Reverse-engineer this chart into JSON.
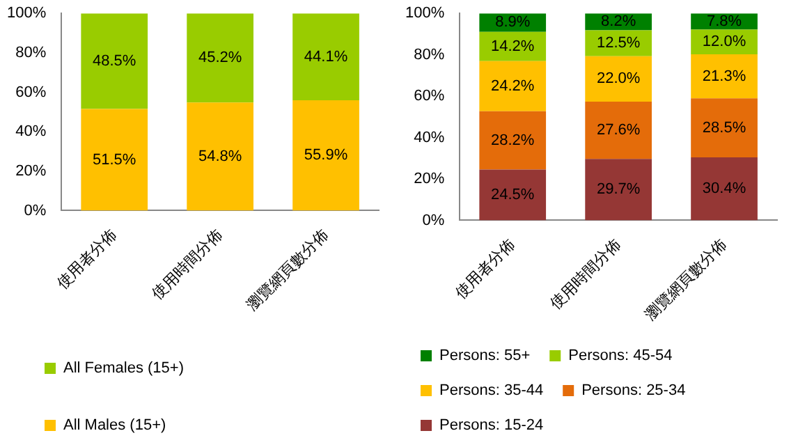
{
  "chart_data": [
    {
      "type": "bar",
      "stacked": true,
      "categories": [
        "使用者分佈",
        "使用時間分佈",
        "瀏覽網頁數分佈"
      ],
      "ylim": [
        0,
        100
      ],
      "yticks": [
        {
          "value": 0,
          "label": "0%"
        },
        {
          "value": 20,
          "label": "20%"
        },
        {
          "value": 40,
          "label": "40%"
        },
        {
          "value": 60,
          "label": "60%"
        },
        {
          "value": 80,
          "label": "80%"
        },
        {
          "value": 100,
          "label": "100%"
        }
      ],
      "grid": false,
      "legend": "bottom",
      "series": [
        {
          "name": "All Males (15+)",
          "color": "#ffc000",
          "values": [
            51.5,
            54.8,
            55.9
          ],
          "value_labels": [
            "51.5%",
            "54.8%",
            "55.9%"
          ]
        },
        {
          "name": "All Females (15+)",
          "color": "#99cc00",
          "values": [
            48.5,
            45.2,
            44.1
          ],
          "value_labels": [
            "48.5%",
            "45.2%",
            "44.1%"
          ]
        }
      ]
    },
    {
      "type": "bar",
      "stacked": true,
      "categories": [
        "使用者分佈",
        "使用時間分佈",
        "瀏覽網頁數分佈"
      ],
      "ylim": [
        0,
        100
      ],
      "yticks": [
        {
          "value": 0,
          "label": "0%"
        },
        {
          "value": 20,
          "label": "20%"
        },
        {
          "value": 40,
          "label": "40%"
        },
        {
          "value": 60,
          "label": "60%"
        },
        {
          "value": 80,
          "label": "80%"
        },
        {
          "value": 100,
          "label": "100%"
        }
      ],
      "grid": false,
      "legend": "bottom",
      "series": [
        {
          "name": "Persons: 15-24",
          "color": "#953735",
          "values": [
            24.5,
            29.7,
            30.4
          ],
          "value_labels": [
            "24.5%",
            "29.7%",
            "30.4%"
          ]
        },
        {
          "name": "Persons: 25-34",
          "color": "#e46c0a",
          "values": [
            28.2,
            27.6,
            28.5
          ],
          "value_labels": [
            "28.2%",
            "27.6%",
            "28.5%"
          ]
        },
        {
          "name": "Persons: 35-44",
          "color": "#ffc000",
          "values": [
            24.2,
            22.0,
            21.3
          ],
          "value_labels": [
            "24.2%",
            "22.0%",
            "21.3%"
          ]
        },
        {
          "name": "Persons: 45-54",
          "color": "#99cc00",
          "values": [
            14.2,
            12.5,
            12.0
          ],
          "value_labels": [
            "14.2%",
            "12.5%",
            "12.0%"
          ]
        },
        {
          "name": "Persons: 55+",
          "color": "#008000",
          "values": [
            8.9,
            8.2,
            7.8
          ],
          "value_labels": [
            "8.9%",
            "8.2%",
            "7.8%"
          ]
        }
      ]
    }
  ]
}
